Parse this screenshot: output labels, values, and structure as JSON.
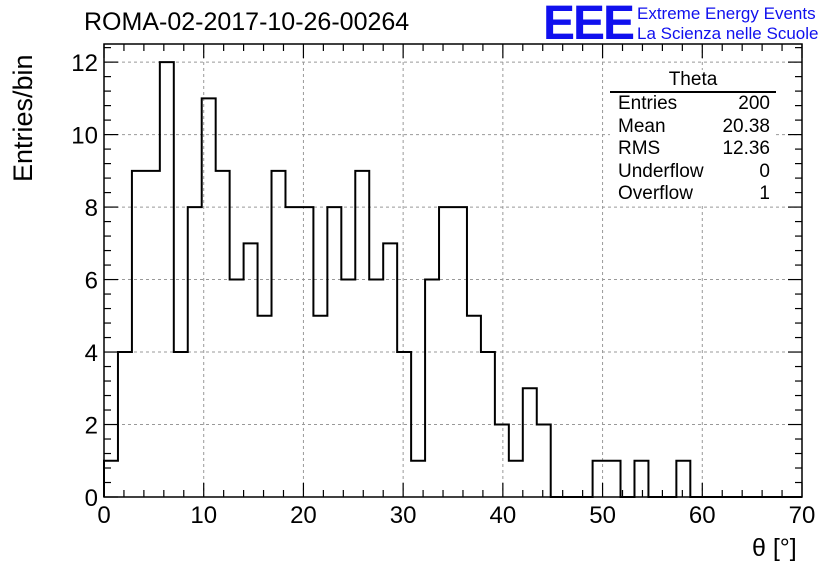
{
  "header": {
    "run_title": "ROMA-02-2017-10-26-00264",
    "logo_mark": "EEE",
    "logo_line1": "Extreme Energy Events",
    "logo_line2": "La Scienza nelle Scuole"
  },
  "stats_box": {
    "title": "Theta",
    "rows": [
      {
        "label": "Entries",
        "value": "200"
      },
      {
        "label": "Mean",
        "value": "20.38"
      },
      {
        "label": "RMS",
        "value": "12.36"
      },
      {
        "label": "Underflow",
        "value": "0"
      },
      {
        "label": "Overflow",
        "value": "1"
      }
    ]
  },
  "colors": {
    "logo": "#1010ee",
    "line": "#000000",
    "grid": "#999999"
  },
  "chart_data": {
    "type": "bar",
    "style": "step-histogram",
    "xlabel": "θ [°]",
    "ylabel": "Entries/bin",
    "xlim": [
      0,
      70
    ],
    "ylim": [
      0,
      12.5
    ],
    "x_ticks": [
      "0",
      "10",
      "20",
      "30",
      "40",
      "50",
      "60",
      "70"
    ],
    "y_ticks": [
      "0",
      "2",
      "4",
      "6",
      "8",
      "10",
      "12"
    ],
    "grid": true,
    "bin_width": 1.4,
    "bin_edges_start": 0,
    "values": [
      1,
      4,
      9,
      9,
      12,
      4,
      8,
      11,
      9,
      6,
      7,
      5,
      9,
      8,
      8,
      5,
      8,
      6,
      9,
      6,
      7,
      4,
      1,
      6,
      8,
      8,
      5,
      4,
      2,
      1,
      3,
      2,
      0,
      0,
      0,
      1,
      1,
      0,
      1,
      0,
      0,
      1,
      0,
      0,
      0,
      0,
      0,
      0,
      0,
      0
    ]
  }
}
